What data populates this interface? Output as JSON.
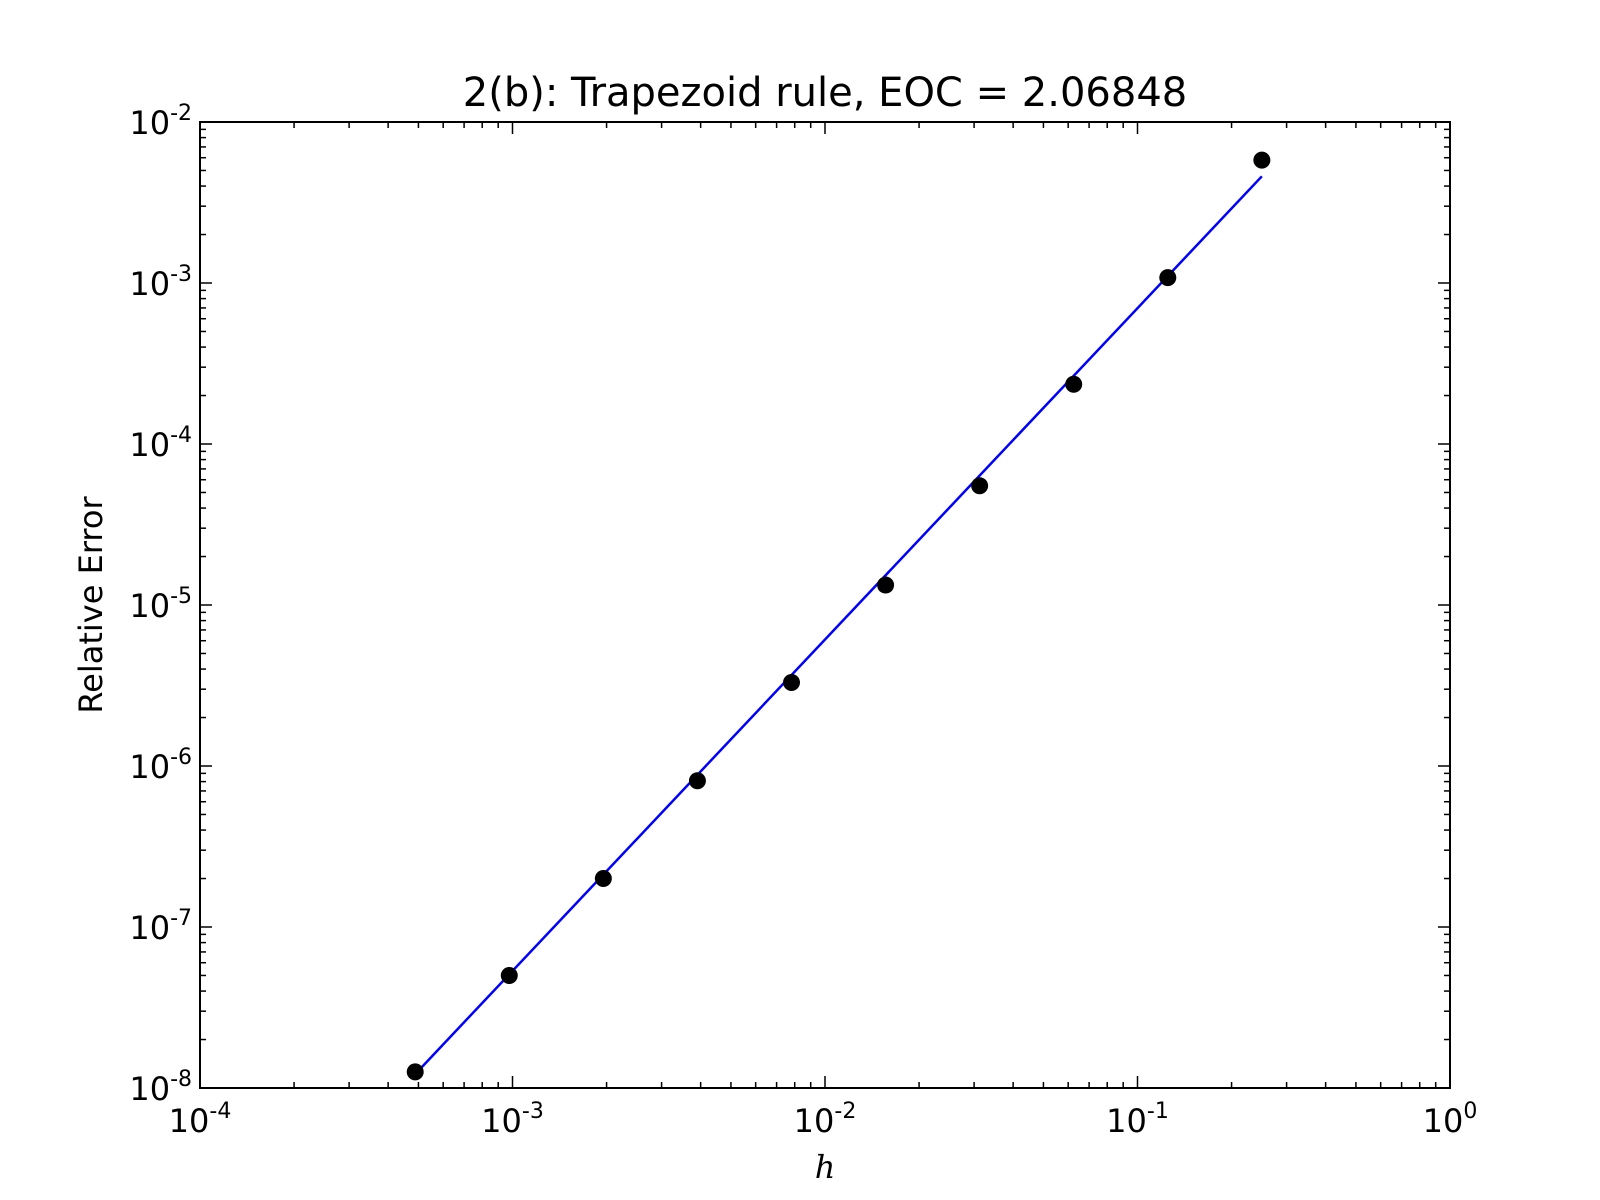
{
  "chart_data": {
    "type": "scatter",
    "title": "2(b): Trapezoid rule, EOC = 2.06848",
    "xlabel": "h",
    "ylabel": "Relative Error",
    "xscale": "log",
    "yscale": "log",
    "xlim": [
      0.0001,
      1
    ],
    "ylim": [
      1e-08,
      0.01
    ],
    "grid": false,
    "x_ticks": [
      {
        "base": "10",
        "exp": "-4"
      },
      {
        "base": "10",
        "exp": "-3"
      },
      {
        "base": "10",
        "exp": "-2"
      },
      {
        "base": "10",
        "exp": "-1"
      },
      {
        "base": "10",
        "exp": "0"
      }
    ],
    "y_ticks": [
      {
        "base": "10",
        "exp": "-8"
      },
      {
        "base": "10",
        "exp": "-7"
      },
      {
        "base": "10",
        "exp": "-6"
      },
      {
        "base": "10",
        "exp": "-5"
      },
      {
        "base": "10",
        "exp": "-4"
      },
      {
        "base": "10",
        "exp": "-3"
      },
      {
        "base": "10",
        "exp": "-2"
      }
    ],
    "series": [
      {
        "kind": "markers",
        "color": "#000000",
        "x": [
          0.00048828,
          0.00097656,
          0.0019531,
          0.0039063,
          0.0078125,
          0.015625,
          0.03125,
          0.0625,
          0.125,
          0.25
        ],
        "y": [
          1.26e-08,
          5e-08,
          2e-07,
          8.1e-07,
          3.3e-06,
          1.33e-05,
          5.5e-05,
          0.000235,
          0.00108,
          0.0058
        ]
      },
      {
        "kind": "line",
        "color": "#0000ff",
        "x": [
          0.00048828,
          0.25
        ],
        "y": [
          1.22e-08,
          0.0046
        ]
      }
    ]
  }
}
